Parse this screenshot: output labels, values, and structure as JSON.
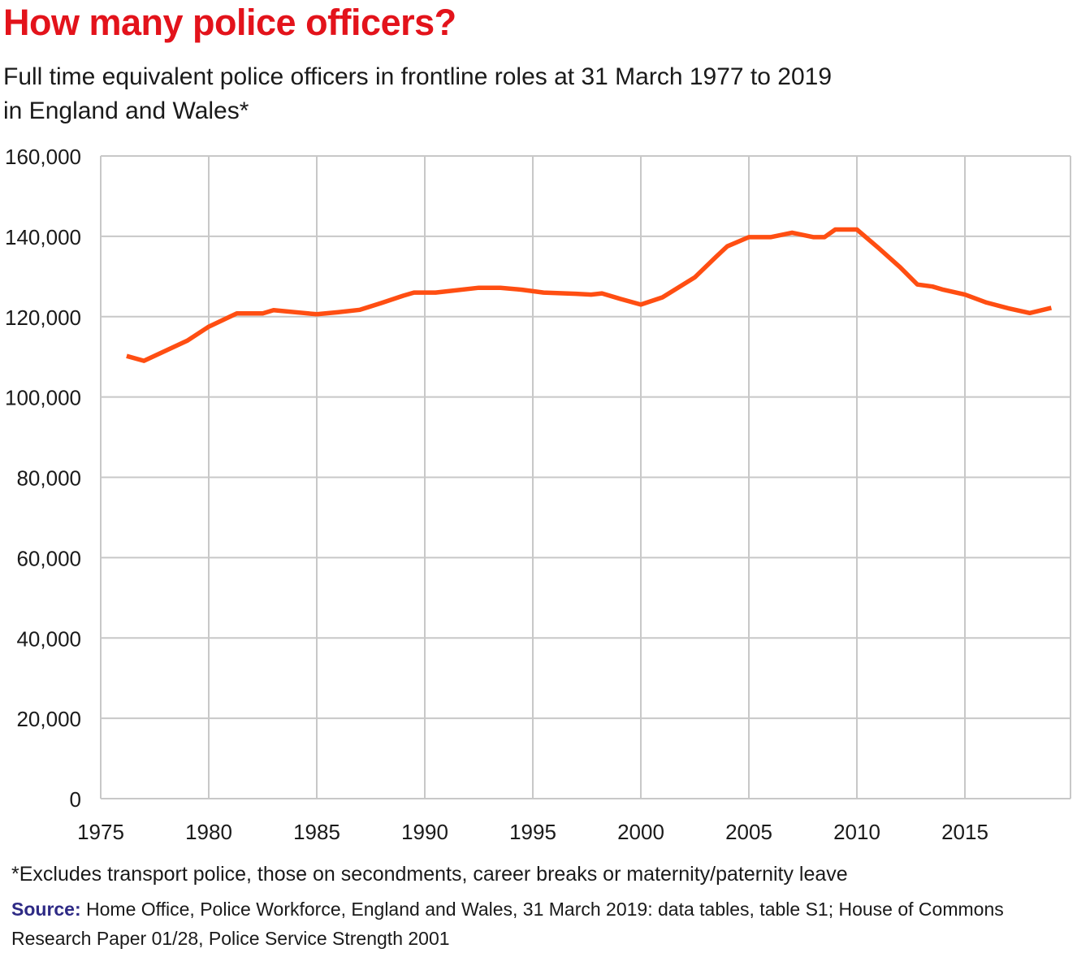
{
  "header": {
    "title": "How many police officers?",
    "subtitle_line1": "Full time equivalent police officers in frontline roles at 31 March 1977 to 2019",
    "subtitle_line2": "in England and Wales*"
  },
  "footer": {
    "footnote": "*Excludes transport police, those on secondments, career breaks or maternity/paternity leave",
    "source_label": "Source:",
    "source_line1": "Home Office, Police Workforce, England and Wales, 31 March 2019: data tables, table S1; House of  Commons",
    "source_line2": "Research Paper 01/28, Police Service Strength 2001"
  },
  "chart_data": {
    "type": "line",
    "title": "How many police officers?",
    "subtitle": "Full time equivalent police officers in frontline roles at 31 March 1977 to 2019 in England and Wales*",
    "xlabel": "",
    "ylabel": "",
    "xlim": [
      1975,
      2019.5
    ],
    "ylim": [
      0,
      160000
    ],
    "x_ticks": [
      1975,
      1980,
      1985,
      1990,
      1995,
      2000,
      2005,
      2010,
      2015
    ],
    "x_tick_labels": [
      "1975",
      "1980",
      "1985",
      "1990",
      "1995",
      "2000",
      "2005",
      "2010",
      "2015"
    ],
    "y_ticks": [
      0,
      20000,
      40000,
      60000,
      80000,
      100000,
      120000,
      140000,
      160000
    ],
    "y_tick_labels": [
      "0",
      "20,000",
      "40,000",
      "60,000",
      "80,000",
      "100,000",
      "120,000",
      "140,000",
      "160,000"
    ],
    "grid": true,
    "line_color": "#ff4e12",
    "grid_color": "#c8c8c8",
    "series": [
      {
        "x": [
          1976.2,
          1977,
          1978,
          1979,
          1980,
          1981.3,
          1982.5,
          1983,
          1985,
          1986,
          1987,
          1988,
          1989,
          1989.5,
          1990.5,
          1992.5,
          1993.5,
          1994.5,
          1995.5,
          1997,
          1997.7,
          1998.2,
          1999,
          2000,
          2001,
          2002.5,
          2003.5,
          2004,
          2005,
          2006,
          2007,
          2008,
          2008.5,
          2009,
          2010,
          2011,
          2012,
          2012.8,
          2013.5,
          2014,
          2015,
          2016,
          2017,
          2018,
          2019
        ],
        "y": [
          110200,
          109000,
          111500,
          114000,
          117500,
          120800,
          120800,
          121600,
          120600,
          121100,
          121700,
          123400,
          125200,
          126000,
          126000,
          127200,
          127200,
          126700,
          126000,
          125700,
          125500,
          125800,
          124500,
          123000,
          124800,
          129800,
          135000,
          137500,
          139800,
          139800,
          140900,
          139800,
          139800,
          141700,
          141700,
          137100,
          132300,
          128000,
          127500,
          126700,
          125500,
          123500,
          122100,
          120900,
          122200
        ]
      }
    ]
  }
}
